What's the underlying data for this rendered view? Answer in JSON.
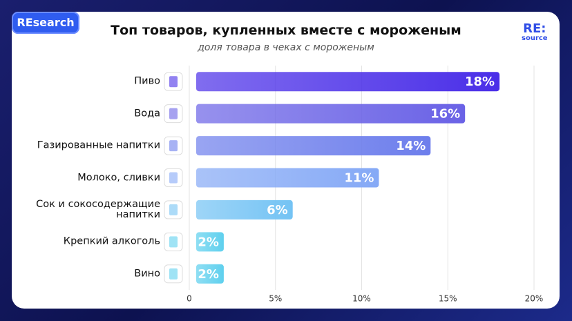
{
  "badge": "REsearch",
  "logo": {
    "top": "RE:",
    "bottom": "source"
  },
  "chart_data": {
    "type": "hbar",
    "title": "Топ товаров, купленных вместе с мороженым",
    "subtitle": "доля товара в чеках с мороженым",
    "categories": [
      "Пиво",
      "Вода",
      "Газированные напитки",
      "Молоко, сливки",
      "Сок и сокосодержащие\nнапитки",
      "Крепкий алкоголь",
      "Вино"
    ],
    "values": [
      18,
      16,
      14,
      11,
      6,
      2,
      2
    ],
    "value_labels": [
      "18%",
      "16%",
      "14%",
      "11%",
      "6%",
      "2%",
      "2%"
    ],
    "colors": [
      "#4a2ee8",
      "#6a62e6",
      "#6d7eec",
      "#85a9f6",
      "#74c3f4",
      "#5fd0ee",
      "#5fd0ee"
    ],
    "xlim": [
      0,
      20
    ],
    "xticks": [
      0,
      {
        "value": 5,
        "label": "5%"
      },
      {
        "value": 10,
        "label": "10%"
      },
      {
        "value": 15,
        "label": "15%"
      },
      {
        "value": 20,
        "label": "20%"
      }
    ],
    "grid": true
  }
}
